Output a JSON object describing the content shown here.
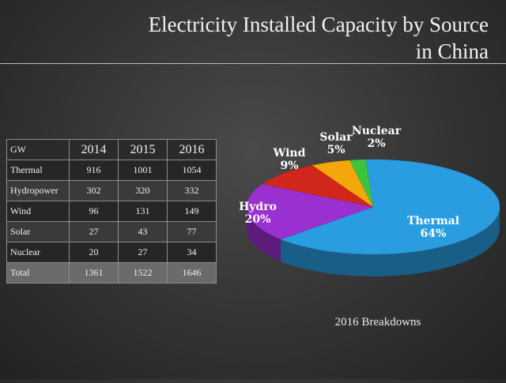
{
  "title_line1": "Electricity Installed Capacity by Source",
  "title_line2": "in China",
  "table": {
    "unit": "GW",
    "years": [
      "2014",
      "2015",
      "2016"
    ],
    "rows": [
      {
        "source": "Thermal",
        "values": [
          "916",
          "1001",
          "1054"
        ]
      },
      {
        "source": "Hydropower",
        "values": [
          "302",
          "320",
          "332"
        ]
      },
      {
        "source": "Wind",
        "values": [
          "96",
          "131",
          "149"
        ]
      },
      {
        "source": "Solar",
        "values": [
          "27",
          "43",
          "77"
        ]
      },
      {
        "source": "Nuclear",
        "values": [
          "20",
          "27",
          "34"
        ]
      }
    ],
    "total": {
      "source": "Total",
      "values": [
        "1361",
        "1522",
        "1646"
      ]
    }
  },
  "caption": "2016 Breakdowns",
  "chart_data": [
    {
      "type": "table",
      "columns": [
        "GW",
        "2014",
        "2015",
        "2016"
      ],
      "rows": [
        [
          "Thermal",
          916,
          1001,
          1054
        ],
        [
          "Hydropower",
          302,
          320,
          332
        ],
        [
          "Wind",
          96,
          131,
          149
        ],
        [
          "Solar",
          27,
          43,
          77
        ],
        [
          "Nuclear",
          20,
          27,
          34
        ],
        [
          "Total",
          1361,
          1522,
          1646
        ]
      ]
    },
    {
      "type": "pie",
      "title": "2016 Breakdowns",
      "slices": [
        {
          "label": "Thermal",
          "value": 64,
          "percent_label": "64%",
          "color": "#2a9de0"
        },
        {
          "label": "Hydro",
          "value": 20,
          "percent_label": "20%",
          "color": "#9a30d0"
        },
        {
          "label": "Wind",
          "value": 9,
          "percent_label": "9%",
          "color": "#d0261c"
        },
        {
          "label": "Solar",
          "value": 5,
          "percent_label": "5%",
          "color": "#f4a60a"
        },
        {
          "label": "Nuclear",
          "value": 2,
          "percent_label": "2%",
          "color": "#3cc43c"
        }
      ]
    }
  ]
}
